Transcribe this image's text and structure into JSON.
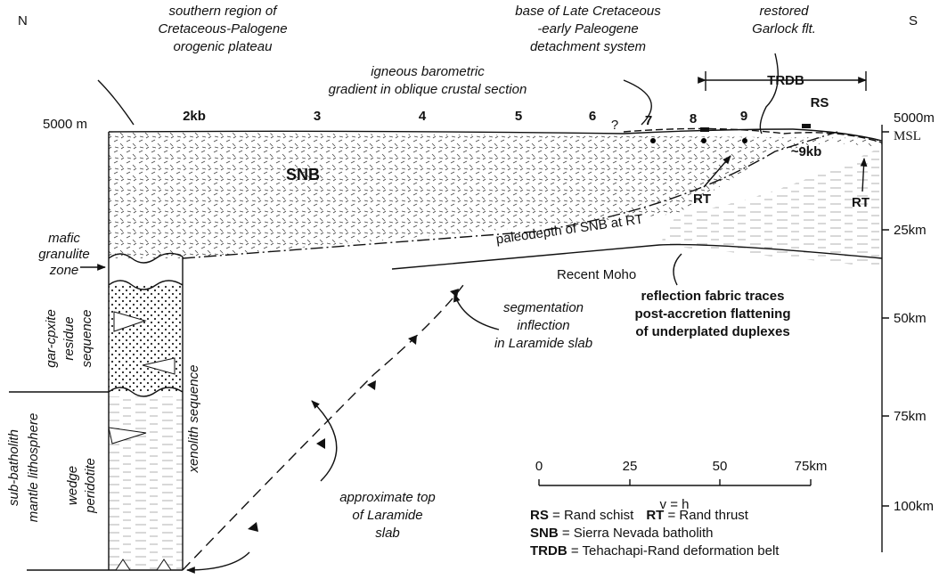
{
  "compass": {
    "north": "N",
    "south": "S"
  },
  "annotations": {
    "plateau": [
      "southern region of",
      "Cretaceous-Palogene",
      "orogenic plateau"
    ],
    "gradient": [
      "igneous barometric",
      "gradient in oblique crustal section"
    ],
    "detachment": [
      "base of Late Cretaceous",
      "-early Paleogene",
      "detachment system"
    ],
    "garlock": [
      "restored",
      "Garlock flt."
    ],
    "paleodepth": "paleodepth of SNB at RT",
    "moho": "Recent Moho",
    "reflection": [
      "reflection fabric traces",
      "post-accretion flattening",
      "of underplated duplexes"
    ],
    "segmentation": [
      "segmentation",
      "inflection",
      "in Laramide slab"
    ],
    "slab_top": [
      "approximate top",
      "of Laramide",
      "slab"
    ],
    "mafic": [
      "mafic",
      "granulite",
      "zone"
    ],
    "residue": [
      "gar-cpxite",
      "residue",
      "sequence"
    ],
    "wedge": [
      "wedge",
      "peridotite"
    ],
    "sub_batholith": [
      "sub-batholith",
      "mantle lithosphere"
    ],
    "xenolith": "xenolith sequence"
  },
  "labels": {
    "snb": "SNB",
    "trdb": "TRDB",
    "rs": "RS",
    "rt_left": "RT",
    "rt_right": "RT"
  },
  "pressures": [
    "2kb",
    "3",
    "4",
    "5",
    "6",
    "?",
    "7",
    "8",
    "9",
    "~9kb"
  ],
  "left_axis": "5000 m",
  "right_axis": [
    "5000m",
    "MSL",
    "25km",
    "50km",
    "75km",
    "100km"
  ],
  "scale": {
    "ticks": [
      "0",
      "25",
      "50",
      "75km"
    ],
    "ratio": "v = h"
  },
  "legend": [
    {
      "abbr": "RS",
      "text": " = Rand schist"
    },
    {
      "abbr": "RT",
      "text": " = Rand thrust"
    },
    {
      "abbr": "SNB",
      "text": " = Sierra Nevada batholith"
    },
    {
      "abbr": "TRDB",
      "text": " = Tehachapi-Rand deformation belt"
    }
  ]
}
